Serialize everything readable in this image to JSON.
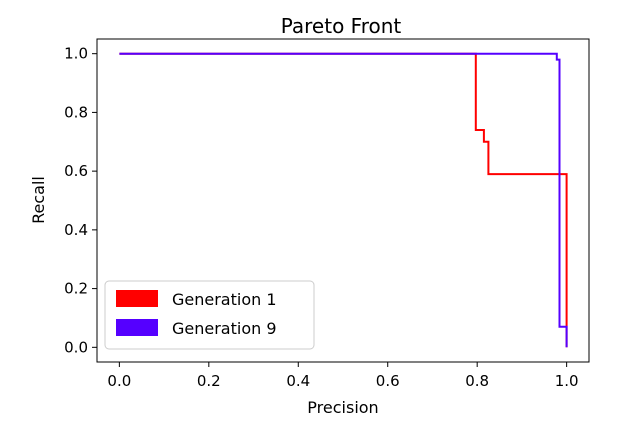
{
  "chart_data": {
    "type": "line",
    "title": "Pareto Front",
    "xlabel": "Precision",
    "ylabel": "Recall",
    "xlim": [
      -0.05,
      1.05
    ],
    "ylim": [
      -0.05,
      1.05
    ],
    "xticks": [
      0.0,
      0.2,
      0.4,
      0.6,
      0.8,
      1.0
    ],
    "yticks": [
      0.0,
      0.2,
      0.4,
      0.6,
      0.8,
      1.0
    ],
    "xtick_labels": [
      "0.0",
      "0.2",
      "0.4",
      "0.6",
      "0.8",
      "1.0"
    ],
    "ytick_labels": [
      "0.0",
      "0.2",
      "0.4",
      "0.6",
      "0.8",
      "1.0"
    ],
    "grid": false,
    "legend_position": "lower-left",
    "series": [
      {
        "name": "Generation 1",
        "color": "#ff0000",
        "x": [
          0.0,
          0.797,
          0.797,
          0.815,
          0.815,
          0.825,
          0.825,
          1.0,
          1.0
        ],
        "y": [
          1.0,
          1.0,
          0.74,
          0.74,
          0.7,
          0.7,
          0.59,
          0.59,
          0.0
        ]
      },
      {
        "name": "Generation 9",
        "color": "#5500ff",
        "x": [
          0.0,
          0.978,
          0.978,
          0.984,
          0.984,
          0.984,
          1.0,
          1.0
        ],
        "y": [
          1.0,
          1.0,
          0.98,
          0.98,
          0.07,
          0.07,
          0.07,
          0.0
        ]
      }
    ]
  }
}
